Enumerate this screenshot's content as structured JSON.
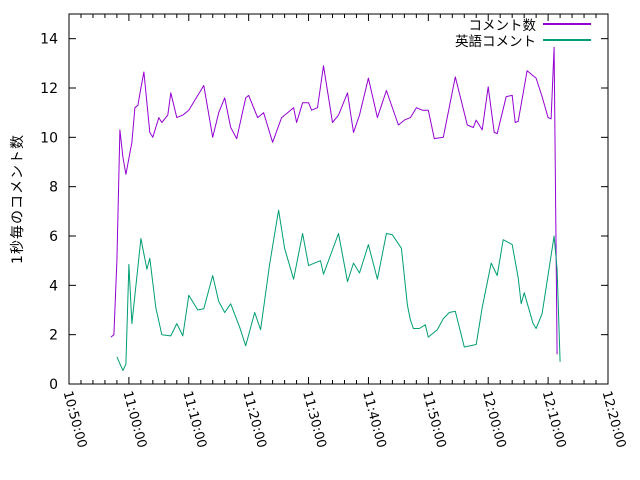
{
  "colors": {
    "background": "#ffffff",
    "axis": "#000000",
    "text": "#000000",
    "series1": "#9400d3",
    "series2": "#009e73"
  },
  "chart_data": {
    "type": "line",
    "title": "",
    "xlabel": "",
    "ylabel": "1秒毎のコメント数",
    "grid": false,
    "legend_position": "top-right",
    "x_axis": {
      "start": "10:50:00",
      "end": "12:20:00",
      "major_tick_interval_minutes": 10,
      "minor_tick_interval_minutes": 2,
      "tick_labels": [
        "10:50:00",
        "11:00:00",
        "11:10:00",
        "11:20:00",
        "11:30:00",
        "11:40:00",
        "11:50:00",
        "12:00:00",
        "12:10:00",
        "12:20:00"
      ]
    },
    "y_axis": {
      "min": 0,
      "max": 15,
      "tick_values": [
        0,
        2,
        4,
        6,
        8,
        10,
        12,
        14
      ],
      "tick_labels": [
        "0",
        "2",
        "4",
        "6",
        "8",
        "10",
        "12",
        "14"
      ]
    },
    "series": [
      {
        "name": "コメント数",
        "color": "#9400d3",
        "points": [
          [
            "10:57:00",
            1.9
          ],
          [
            "10:57:30",
            2.0
          ],
          [
            "10:58:00",
            5.0
          ],
          [
            "10:58:30",
            10.3
          ],
          [
            "10:59:00",
            9.2
          ],
          [
            "10:59:30",
            8.5
          ],
          [
            "11:00:30",
            9.8
          ],
          [
            "11:01:00",
            11.2
          ],
          [
            "11:01:30",
            11.3
          ],
          [
            "11:02:00",
            12.0
          ],
          [
            "11:02:30",
            12.65
          ],
          [
            "11:03:30",
            10.2
          ],
          [
            "11:04:00",
            10.0
          ],
          [
            "11:05:00",
            10.8
          ],
          [
            "11:05:30",
            10.6
          ],
          [
            "11:06:30",
            10.9
          ],
          [
            "11:07:00",
            11.8
          ],
          [
            "11:08:00",
            10.8
          ],
          [
            "11:09:00",
            10.9
          ],
          [
            "11:10:00",
            11.1
          ],
          [
            "11:11:00",
            11.5
          ],
          [
            "11:12:30",
            12.1
          ],
          [
            "11:14:00",
            10.0
          ],
          [
            "11:15:00",
            11.0
          ],
          [
            "11:16:00",
            11.6
          ],
          [
            "11:17:00",
            10.4
          ],
          [
            "11:18:00",
            9.95
          ],
          [
            "11:19:30",
            11.6
          ],
          [
            "11:20:00",
            11.7
          ],
          [
            "11:21:30",
            10.8
          ],
          [
            "11:22:30",
            11.0
          ],
          [
            "11:23:00",
            10.6
          ],
          [
            "11:24:00",
            9.8
          ],
          [
            "11:25:30",
            10.8
          ],
          [
            "11:26:30",
            11.0
          ],
          [
            "11:27:30",
            11.2
          ],
          [
            "11:28:00",
            10.6
          ],
          [
            "11:29:00",
            11.4
          ],
          [
            "11:30:00",
            11.4
          ],
          [
            "11:30:30",
            11.1
          ],
          [
            "11:31:30",
            11.2
          ],
          [
            "11:32:30",
            12.9
          ],
          [
            "11:34:00",
            10.6
          ],
          [
            "11:35:00",
            10.9
          ],
          [
            "11:36:30",
            11.8
          ],
          [
            "11:37:30",
            10.2
          ],
          [
            "11:38:30",
            10.9
          ],
          [
            "11:40:00",
            12.4
          ],
          [
            "11:41:30",
            10.8
          ],
          [
            "11:43:00",
            11.9
          ],
          [
            "11:45:00",
            10.5
          ],
          [
            "11:46:00",
            10.7
          ],
          [
            "11:47:00",
            10.8
          ],
          [
            "11:48:00",
            11.2
          ],
          [
            "11:49:00",
            11.1
          ],
          [
            "11:50:00",
            11.1
          ],
          [
            "11:51:00",
            9.95
          ],
          [
            "11:52:30",
            10.0
          ],
          [
            "11:54:30",
            12.45
          ],
          [
            "11:56:30",
            10.5
          ],
          [
            "11:57:30",
            10.4
          ],
          [
            "11:58:00",
            10.7
          ],
          [
            "11:59:00",
            10.3
          ],
          [
            "12:00:00",
            12.05
          ],
          [
            "12:01:00",
            10.2
          ],
          [
            "12:01:30",
            10.15
          ],
          [
            "12:03:00",
            11.65
          ],
          [
            "12:04:00",
            11.7
          ],
          [
            "12:04:30",
            10.6
          ],
          [
            "12:05:00",
            10.65
          ],
          [
            "12:06:30",
            12.7
          ],
          [
            "12:07:30",
            12.5
          ],
          [
            "12:08:00",
            12.4
          ],
          [
            "12:09:00",
            11.65
          ],
          [
            "12:10:00",
            10.8
          ],
          [
            "12:10:30",
            10.75
          ],
          [
            "12:11:00",
            13.65
          ],
          [
            "12:11:30",
            1.2
          ]
        ]
      },
      {
        "name": "英語コメント",
        "color": "#009e73",
        "points": [
          [
            "10:58:00",
            1.1
          ],
          [
            "10:59:00",
            0.55
          ],
          [
            "10:59:30",
            0.8
          ],
          [
            "11:00:00",
            4.85
          ],
          [
            "11:00:30",
            2.45
          ],
          [
            "11:02:00",
            5.9
          ],
          [
            "11:03:00",
            4.65
          ],
          [
            "11:03:30",
            5.1
          ],
          [
            "11:04:30",
            3.1
          ],
          [
            "11:05:30",
            2.0
          ],
          [
            "11:07:00",
            1.95
          ],
          [
            "11:08:00",
            2.45
          ],
          [
            "11:09:00",
            1.95
          ],
          [
            "11:10:00",
            3.6
          ],
          [
            "11:11:30",
            3.0
          ],
          [
            "11:12:30",
            3.05
          ],
          [
            "11:14:00",
            4.4
          ],
          [
            "11:15:00",
            3.35
          ],
          [
            "11:16:00",
            2.9
          ],
          [
            "11:17:00",
            3.25
          ],
          [
            "11:18:30",
            2.3
          ],
          [
            "11:19:30",
            1.55
          ],
          [
            "11:21:00",
            2.9
          ],
          [
            "11:22:00",
            2.2
          ],
          [
            "11:23:30",
            4.85
          ],
          [
            "11:25:00",
            7.05
          ],
          [
            "11:26:00",
            5.5
          ],
          [
            "11:27:30",
            4.25
          ],
          [
            "11:29:00",
            6.1
          ],
          [
            "11:30:00",
            4.8
          ],
          [
            "11:31:00",
            4.9
          ],
          [
            "11:32:00",
            5.0
          ],
          [
            "11:32:30",
            4.45
          ],
          [
            "11:35:00",
            6.1
          ],
          [
            "11:36:30",
            4.15
          ],
          [
            "11:37:30",
            4.9
          ],
          [
            "11:38:30",
            4.5
          ],
          [
            "11:40:00",
            5.65
          ],
          [
            "11:41:30",
            4.25
          ],
          [
            "11:43:00",
            6.1
          ],
          [
            "11:44:00",
            6.05
          ],
          [
            "11:45:30",
            5.5
          ],
          [
            "11:46:30",
            3.2
          ],
          [
            "11:47:00",
            2.6
          ],
          [
            "11:47:30",
            2.25
          ],
          [
            "11:48:30",
            2.25
          ],
          [
            "11:49:30",
            2.4
          ],
          [
            "11:50:00",
            1.9
          ],
          [
            "11:51:30",
            2.2
          ],
          [
            "11:52:30",
            2.65
          ],
          [
            "11:53:30",
            2.9
          ],
          [
            "11:54:30",
            2.95
          ],
          [
            "11:56:00",
            1.5
          ],
          [
            "11:58:00",
            1.6
          ],
          [
            "11:59:00",
            3.1
          ],
          [
            "12:00:30",
            4.9
          ],
          [
            "12:01:30",
            4.4
          ],
          [
            "12:02:30",
            5.85
          ],
          [
            "12:04:00",
            5.65
          ],
          [
            "12:05:00",
            4.3
          ],
          [
            "12:05:30",
            3.25
          ],
          [
            "12:06:00",
            3.7
          ],
          [
            "12:07:30",
            2.45
          ],
          [
            "12:08:00",
            2.25
          ],
          [
            "12:09:00",
            2.85
          ],
          [
            "12:11:00",
            6.0
          ],
          [
            "12:11:30",
            4.65
          ],
          [
            "12:12:00",
            0.9
          ]
        ]
      }
    ]
  }
}
